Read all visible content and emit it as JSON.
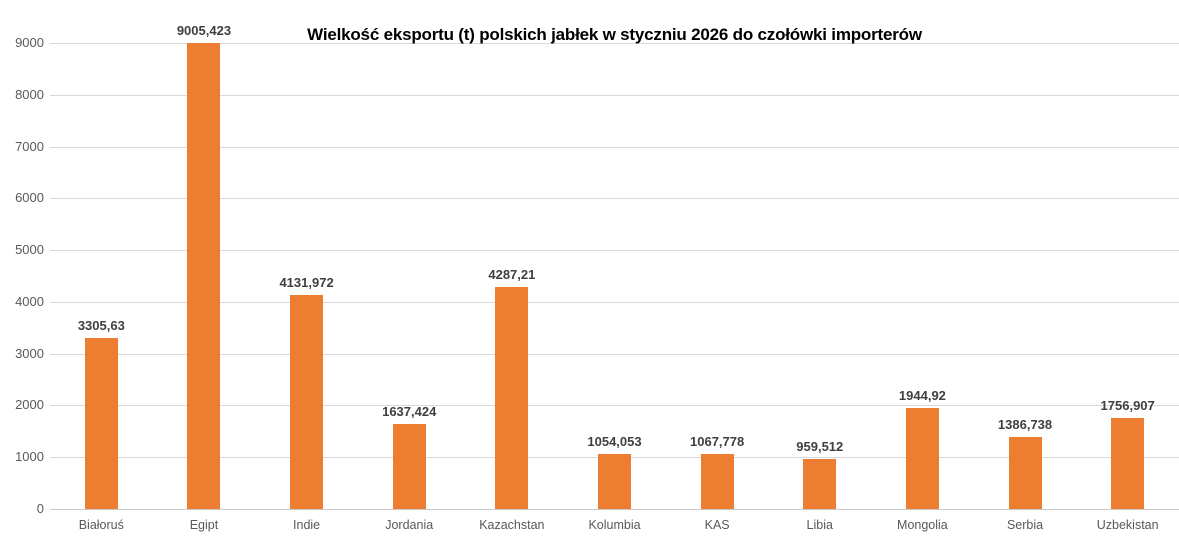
{
  "chart_data": {
    "type": "bar",
    "title": "Wielkość eksportu (t) polskich jabłek w styczniu 2026 do czołówki importerów",
    "xlabel": "",
    "ylabel": "",
    "categories": [
      "Białoruś",
      "Egipt",
      "Indie",
      "Jordania",
      "Kazachstan",
      "Kolumbia",
      "KAS",
      "Libia",
      "Mongolia",
      "Serbia",
      "Uzbekistan"
    ],
    "values": [
      3305.63,
      9005.423,
      4131.972,
      1637.424,
      4287.21,
      1054.053,
      1067.778,
      959.512,
      1944.92,
      1386.738,
      1756.907
    ],
    "value_labels": [
      "3305,63",
      "9005,423",
      "4131,972",
      "1637,424",
      "4287,21",
      "1054,053",
      "1067,778",
      "959,512",
      "1944,92",
      "1386,738",
      "1756,907"
    ],
    "ytick_labels": [
      "0",
      "1000",
      "2000",
      "3000",
      "4000",
      "5000",
      "6000",
      "7000",
      "8000",
      "9000"
    ],
    "ylim": [
      0,
      9000
    ],
    "ytick_step": 1000,
    "grid": "horizontal",
    "legend": "none",
    "bar_color": "#ed7d31",
    "gridline_color": "#d9d9d9",
    "axis_label_color": "#595959",
    "data_label_color": "#3f3f3f",
    "title_color": "#000000"
  }
}
